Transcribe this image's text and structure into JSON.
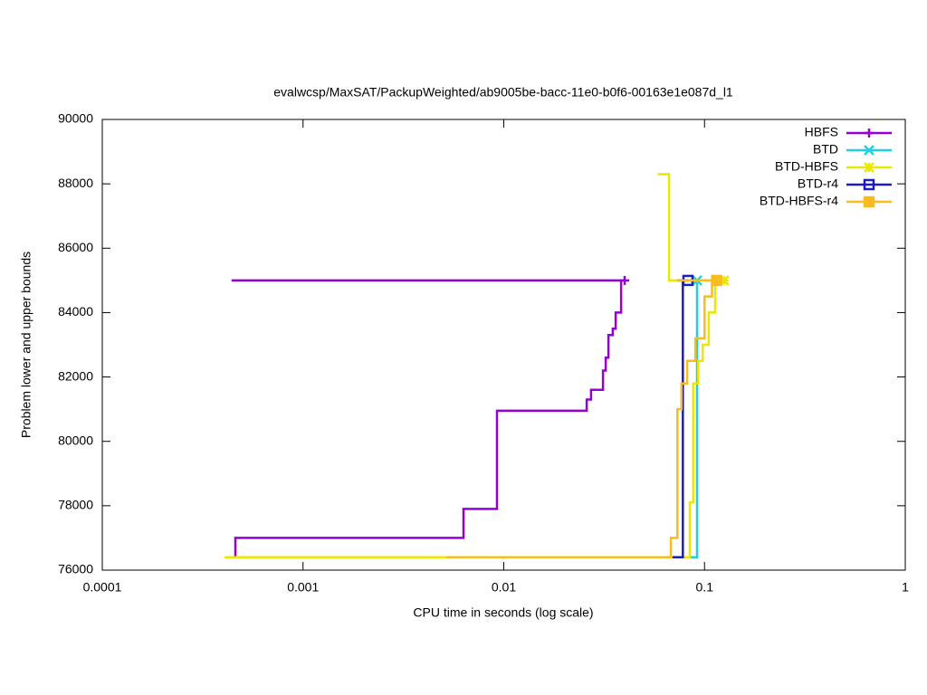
{
  "chart_data": {
    "type": "line",
    "title": "evalwcsp/MaxSAT/PackupWeighted/ab9005be-bacc-11e0-b0f6-00163e1e087d_l1",
    "x_label": "CPU time in seconds (log scale)",
    "y_label": "Problem lower and upper bounds",
    "xscale": "log",
    "legend": "top-right",
    "grid": false,
    "xlim": [
      0.0001,
      1
    ],
    "xticks": [
      0.0001,
      0.001,
      0.01,
      0.1,
      1
    ],
    "ylim": [
      76000,
      90000
    ],
    "yticks": [
      76000,
      78000,
      80000,
      82000,
      84000,
      86000,
      88000,
      90000
    ],
    "series": [
      {
        "name": "HBFS",
        "color": "#9400d3",
        "marker": "plus",
        "x": [
          0.00046,
          0.00046,
          0.0063,
          0.0063,
          0.00925,
          0.00925,
          0.0259,
          0.0259,
          0.0272,
          0.0272,
          0.0312,
          0.0312,
          0.0322,
          0.0322,
          0.0332,
          0.0332,
          0.0349,
          0.0349,
          0.0361,
          0.0361,
          0.0384,
          0.0384,
          null,
          0.00044,
          0.04
        ],
        "values": [
          76400,
          77000,
          77000,
          77900,
          77900,
          80950,
          80950,
          81300,
          81300,
          81600,
          81600,
          82200,
          82200,
          82600,
          82600,
          83300,
          83300,
          83500,
          83500,
          84000,
          84000,
          85000,
          null,
          85000,
          85000
        ]
      },
      {
        "name": "BTD",
        "color": "#20d0e0",
        "marker": "cross",
        "x": [
          0.0693,
          0.0918,
          0.0918,
          null,
          0.08,
          0.0918
        ],
        "values": [
          76400,
          76400,
          85000,
          null,
          85000,
          85000
        ]
      },
      {
        "name": "BTD-HBFS",
        "color": "#e8e800",
        "marker": "star",
        "x": [
          0.000406,
          0.0845,
          0.0845,
          0.0879,
          0.0879,
          0.093,
          0.093,
          0.098,
          0.098,
          0.105,
          0.105,
          0.113,
          0.113,
          null,
          0.0583,
          0.0666,
          0.0666,
          0.125
        ],
        "values": [
          76400,
          76400,
          78100,
          78100,
          81800,
          81800,
          82500,
          82500,
          83000,
          83000,
          84000,
          84000,
          85000,
          null,
          88300,
          88300,
          85000,
          85000
        ]
      },
      {
        "name": "BTD-r4",
        "color": "#1c1cc0",
        "marker": "square",
        "x": [
          0.0693,
          0.078,
          0.078,
          null,
          0.0733,
          0.0827
        ],
        "values": [
          76400,
          76400,
          85000,
          null,
          85000,
          85000
        ]
      },
      {
        "name": "BTD-HBFS-r4",
        "color": "#f8bc20",
        "marker": "filled-square",
        "x": [
          0.00518,
          0.068,
          0.068,
          0.0733,
          0.0733,
          0.0768,
          0.0768,
          0.082,
          0.082,
          0.09,
          0.09,
          0.1,
          0.1,
          0.109,
          0.109,
          null,
          0.0733,
          0.115
        ],
        "values": [
          76400,
          76400,
          77000,
          77000,
          81000,
          81000,
          81800,
          81800,
          82500,
          82500,
          83200,
          83200,
          84500,
          84500,
          85000,
          null,
          85000,
          85000
        ]
      }
    ]
  }
}
